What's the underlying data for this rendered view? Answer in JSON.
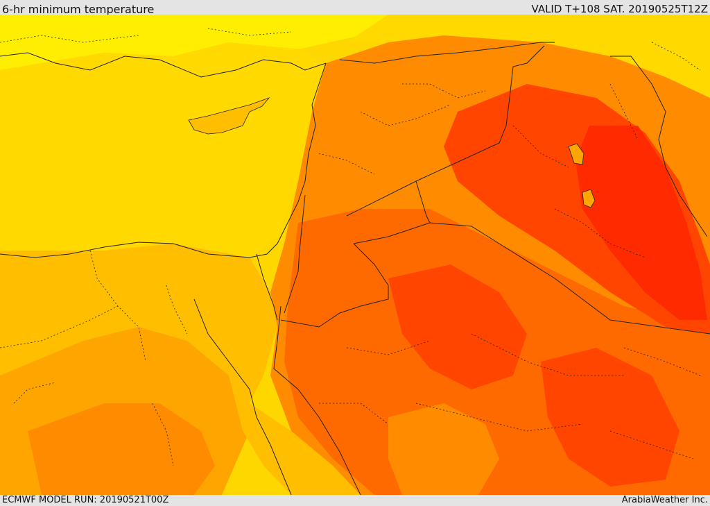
{
  "header": {
    "title": "6-hr minimum temperature",
    "valid": "VALID T+108 SAT. 20190525T12Z"
  },
  "footer": {
    "model_run": "ECMWF MODEL RUN: 20190521T00Z",
    "credit": "ArabiaWeather Inc."
  },
  "map": {
    "colors": {
      "very_light": "#ffff00",
      "light_yellow": "#ffee00",
      "yellow": "#ffd900",
      "gold": "#ffbf00",
      "amber": "#ffa500",
      "orange": "#ff8c00",
      "dark_orange": "#ff6a00",
      "red_orange": "#ff4500",
      "red": "#ff2a00"
    }
  }
}
